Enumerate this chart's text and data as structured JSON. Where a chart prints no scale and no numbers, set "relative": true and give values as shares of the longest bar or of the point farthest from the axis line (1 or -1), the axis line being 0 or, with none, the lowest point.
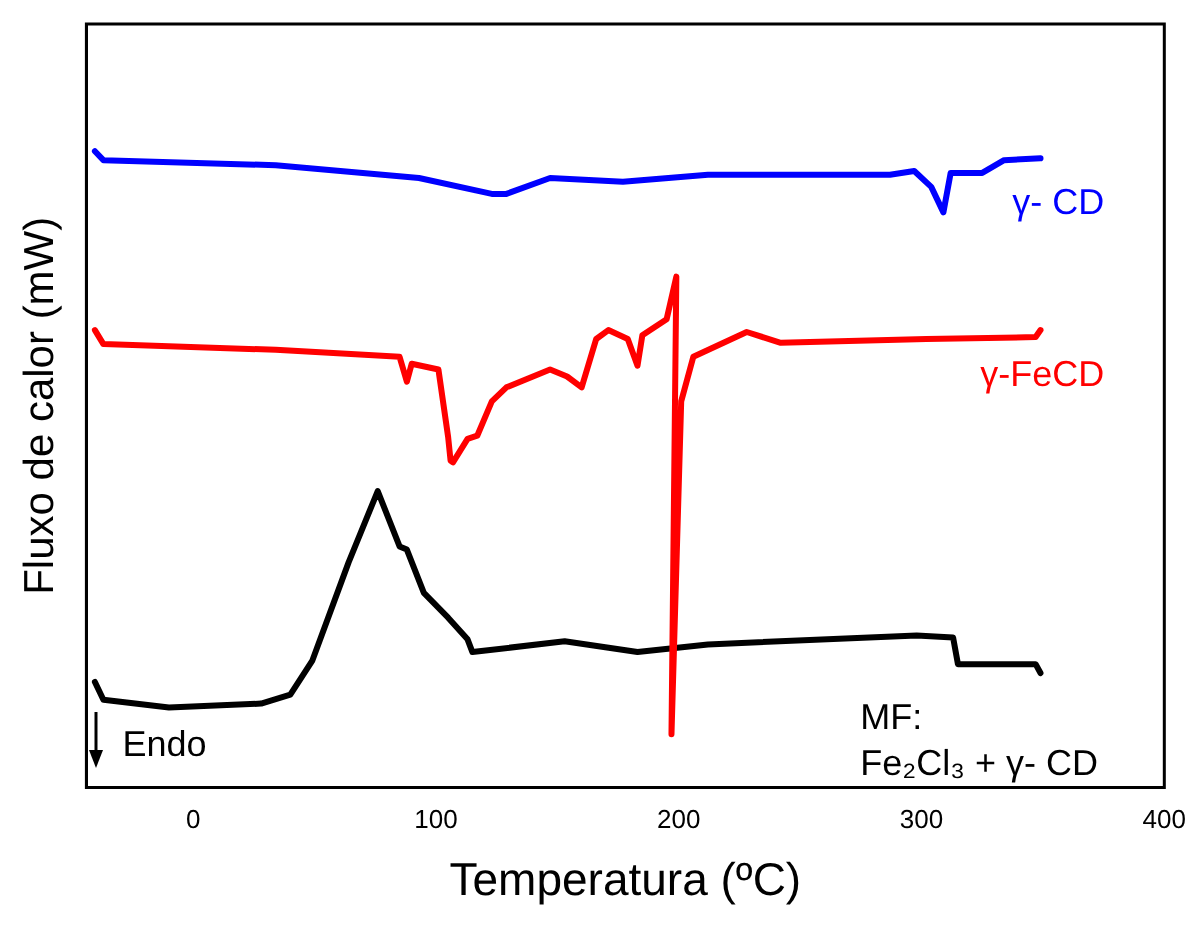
{
  "chart_data": {
    "type": "line",
    "relative": true,
    "xlabel": "Temperatura (ºC)",
    "ylabel": "Fluxo de calor (mW)",
    "xlim": [
      -44,
      400
    ],
    "xticks": [
      0,
      100,
      200,
      300,
      400
    ],
    "tick_labels": "x",
    "grid": false,
    "legend": false,
    "marker": "none",
    "line_style": "solid",
    "annotations": [
      "Endo"
    ],
    "series": [
      {
        "name": "γ- CD",
        "color": "#0000ff",
        "x": [
          -40.5,
          -37,
          34,
          93,
          123,
          129,
          147,
          177,
          212,
          287,
          297,
          304,
          309,
          312,
          325,
          334,
          349
        ],
        "values": [
          1.0,
          0.986,
          0.978,
          0.958,
          0.933,
          0.933,
          0.958,
          0.952,
          0.963,
          0.963,
          0.969,
          0.944,
          0.904,
          0.966,
          0.966,
          0.986,
          0.989
        ]
      },
      {
        "name": "γ-FeCD",
        "color": "#ff0000",
        "x": [
          -40.5,
          -37,
          34,
          85,
          88,
          90,
          101,
          105,
          106,
          107,
          113,
          117,
          123,
          129,
          147,
          154,
          160,
          166,
          171,
          179,
          183,
          185,
          195,
          199,
          197,
          201,
          206,
          228,
          242,
          302,
          347,
          349
        ],
        "values": [
          0.719,
          0.697,
          0.688,
          0.677,
          0.638,
          0.666,
          0.657,
          0.551,
          0.514,
          0.511,
          0.548,
          0.553,
          0.607,
          0.629,
          0.657,
          0.646,
          0.629,
          0.705,
          0.719,
          0.705,
          0.663,
          0.711,
          0.736,
          0.803,
          0.084,
          0.607,
          0.677,
          0.716,
          0.699,
          0.705,
          0.708,
          0.719
        ]
      },
      {
        "name": "MF:\nFe₂Cl₃ + γ- CD",
        "color": "#000000",
        "x": [
          -40.5,
          -37,
          -10,
          28,
          40,
          49,
          64,
          76,
          85,
          88,
          95,
          105,
          113,
          115,
          153,
          183,
          212,
          298,
          313,
          315,
          347,
          349
        ],
        "values": [
          0.166,
          0.138,
          0.126,
          0.132,
          0.146,
          0.199,
          0.354,
          0.466,
          0.379,
          0.374,
          0.306,
          0.267,
          0.233,
          0.213,
          0.23,
          0.213,
          0.225,
          0.239,
          0.236,
          0.194,
          0.194,
          0.18
        ]
      }
    ]
  }
}
